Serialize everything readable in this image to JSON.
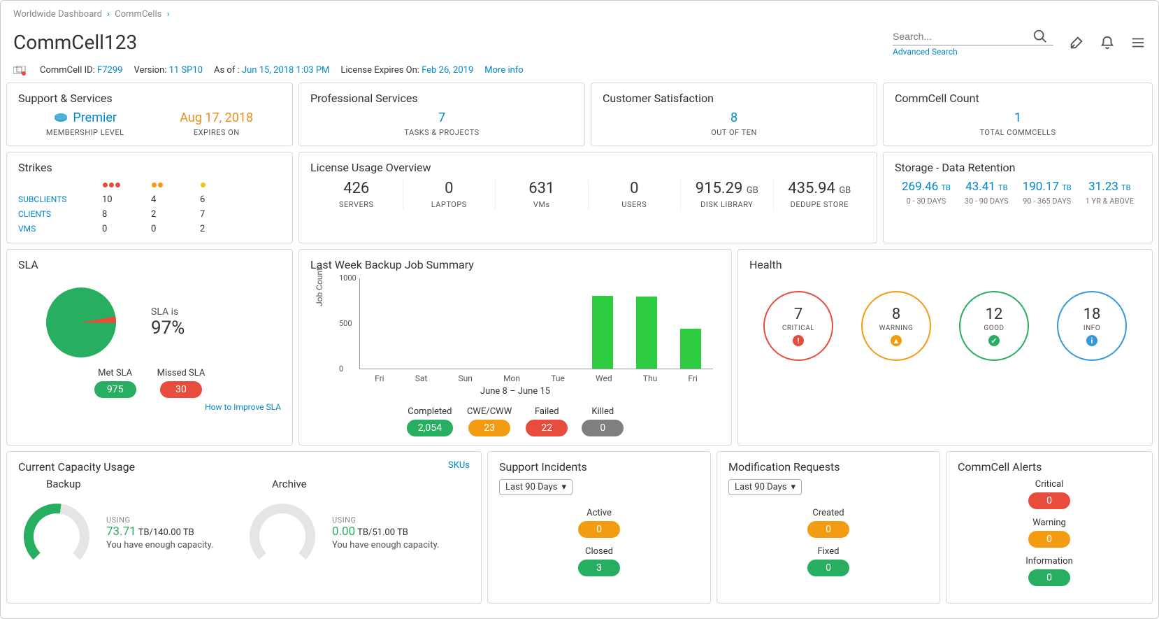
{
  "breadcrumb": {
    "l1": "Worldwide Dashboard",
    "l2": "CommCells"
  },
  "title": "CommCell123",
  "search": {
    "placeholder": "Search...",
    "advanced": "Advanced Search"
  },
  "meta": {
    "id_label": "CommCell ID:",
    "id": "F7299",
    "ver_label": "Version:",
    "ver": "11 SP10",
    "asof_label": "As of :",
    "asof": "Jun 15, 2018 1:03 PM",
    "lic_label": "License Expires On:",
    "lic": "Feb 26, 2019",
    "more": "More info"
  },
  "support": {
    "title": "Support & Services",
    "level_val": "Premier",
    "level_lbl": "MEMBERSHIP LEVEL",
    "exp_val": "Aug 17, 2018",
    "exp_lbl": "EXPIRES ON"
  },
  "prof": {
    "title": "Professional Services",
    "val": "7",
    "lbl": "TASKS & PROJECTS"
  },
  "csat": {
    "title": "Customer Satisfaction",
    "val": "8",
    "lbl": "OUT OF TEN"
  },
  "ccount": {
    "title": "CommCell Count",
    "val": "1",
    "lbl": "TOTAL COMMCELLS"
  },
  "strikes": {
    "title": "Strikes",
    "rows": [
      {
        "name": "SUBCLIENTS",
        "r": "10",
        "o": "4",
        "y": "6"
      },
      {
        "name": "CLIENTS",
        "r": "8",
        "o": "2",
        "y": "7"
      },
      {
        "name": "VMS",
        "r": "0",
        "o": "0",
        "y": "2"
      }
    ]
  },
  "license": {
    "title": "License Usage Overview",
    "items": [
      {
        "val": "426",
        "unit": "",
        "lbl": "SERVERS"
      },
      {
        "val": "0",
        "unit": "",
        "lbl": "LAPTOPS"
      },
      {
        "val": "631",
        "unit": "",
        "lbl": "VMs"
      },
      {
        "val": "0",
        "unit": "",
        "lbl": "USERS"
      },
      {
        "val": "915.29",
        "unit": "GB",
        "lbl": "DISK LIBRARY"
      },
      {
        "val": "435.94",
        "unit": "GB",
        "lbl": "DEDUPE STORE"
      }
    ]
  },
  "retention": {
    "title": "Storage - Data Retention",
    "items": [
      {
        "val": "269.46",
        "unit": "TB",
        "lbl": "0 - 30 DAYS"
      },
      {
        "val": "43.41",
        "unit": "TB",
        "lbl": "30 - 90 DAYS"
      },
      {
        "val": "190.17",
        "unit": "TB",
        "lbl": "90 - 365 DAYS"
      },
      {
        "val": "31.23",
        "unit": "TB",
        "lbl": "1 YR & ABOVE"
      }
    ]
  },
  "sla": {
    "title": "SLA",
    "is": "SLA is",
    "pct": "97%",
    "met_pct": 97,
    "colors": {
      "met": "#27ae60",
      "missed": "#e74c3c"
    },
    "met_label": "Met SLA",
    "met_val": "975",
    "missed_label": "Missed SLA",
    "missed_val": "30",
    "improve": "How to Improve SLA"
  },
  "jobs": {
    "title": "Last Week Backup Job Summary",
    "ylabel": "Job Count",
    "ymax": 1000,
    "yticks": [
      0,
      500,
      1000
    ],
    "categories": [
      "Fri",
      "Sat",
      "Sun",
      "Mon",
      "Tue",
      "Wed",
      "Thu",
      "Fri"
    ],
    "values": [
      0,
      0,
      0,
      0,
      0,
      800,
      790,
      440
    ],
    "xtitle": "June 8 – June 15",
    "bar_color": "#2ecc40",
    "legend": [
      {
        "label": "Completed",
        "val": "2,054",
        "cls": "p-green"
      },
      {
        "label": "CWE/CWW",
        "val": "23",
        "cls": "p-orange"
      },
      {
        "label": "Failed",
        "val": "22",
        "cls": "p-red"
      },
      {
        "label": "Killed",
        "val": "0",
        "cls": "p-gray"
      }
    ]
  },
  "health": {
    "title": "Health",
    "items": [
      {
        "val": "7",
        "lbl": "CRITICAL",
        "color": "#e74c3c",
        "icon_bg": "#e74c3c",
        "glyph": "!"
      },
      {
        "val": "8",
        "lbl": "WARNING",
        "color": "#f39c12",
        "icon_bg": "#f39c12",
        "glyph": "▲"
      },
      {
        "val": "12",
        "lbl": "GOOD",
        "color": "#27ae60",
        "icon_bg": "#27ae60",
        "glyph": "✓"
      },
      {
        "val": "18",
        "lbl": "INFO",
        "color": "#3498db",
        "icon_bg": "#3498db",
        "glyph": "i"
      }
    ]
  },
  "capacity": {
    "title": "Current Capacity Usage",
    "skus": "SKUs",
    "backup": {
      "heading": "Backup",
      "using": "USING",
      "val": "73.71",
      "unit": "TB",
      "total": "/140.00 TB",
      "note": "You have enough capacity.",
      "pct": 53,
      "color": "#27ae60"
    },
    "archive": {
      "heading": "Archive",
      "using": "USING",
      "val": "0.00",
      "unit": "TB",
      "total": "/51.00 TB",
      "note": "You have enough capacity.",
      "pct": 0,
      "color": "#cccccc"
    }
  },
  "incidents": {
    "title": "Support Incidents",
    "range": "Last 90 Days",
    "active_lbl": "Active",
    "active_val": "0",
    "closed_lbl": "Closed",
    "closed_val": "3"
  },
  "requests": {
    "title": "Modification Requests",
    "range": "Last 90 Days",
    "created_lbl": "Created",
    "created_val": "0",
    "fixed_lbl": "Fixed",
    "fixed_val": "0"
  },
  "alerts": {
    "title": "CommCell Alerts",
    "crit_lbl": "Critical",
    "crit_val": "0",
    "warn_lbl": "Warning",
    "warn_val": "0",
    "info_lbl": "Information",
    "info_val": "0"
  }
}
